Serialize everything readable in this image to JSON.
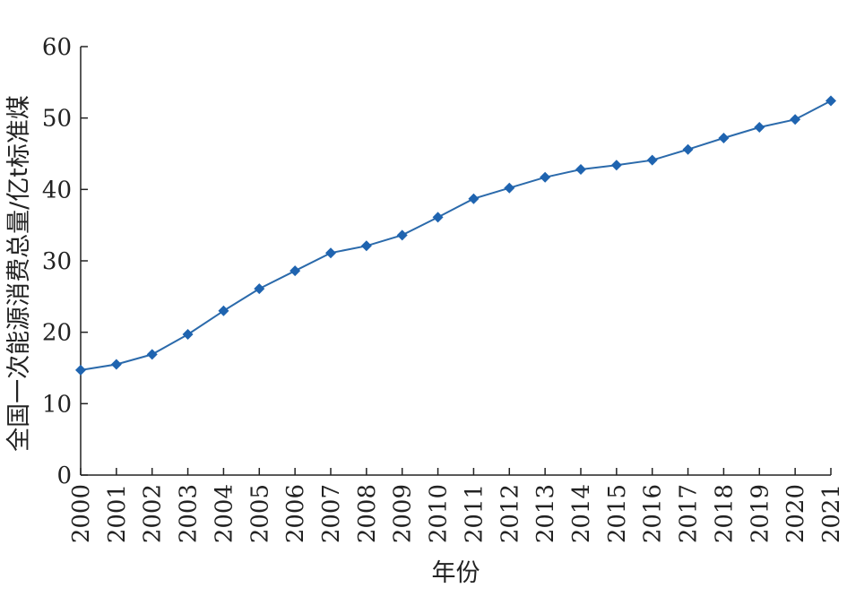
{
  "chart_data": {
    "type": "line",
    "title": "",
    "xlabel": "年份",
    "ylabel": "全国一次能源消费总量/亿t标准煤",
    "x": [
      "2000",
      "2001",
      "2002",
      "2003",
      "2004",
      "2005",
      "2006",
      "2007",
      "2008",
      "2009",
      "2010",
      "2011",
      "2012",
      "2013",
      "2014",
      "2015",
      "2016",
      "2017",
      "2018",
      "2019",
      "2020",
      "2021"
    ],
    "series": [
      {
        "values": [
          14.7,
          15.5,
          16.9,
          19.7,
          23.0,
          26.1,
          28.6,
          31.1,
          32.1,
          33.6,
          36.1,
          38.7,
          40.2,
          41.7,
          42.8,
          43.4,
          44.1,
          45.6,
          47.2,
          48.7,
          49.8,
          52.4
        ]
      }
    ],
    "ylim": [
      0,
      60
    ],
    "yticks": [
      "0",
      "10",
      "20",
      "30",
      "40",
      "50",
      "60"
    ],
    "grid": false,
    "legend": "none",
    "colors": {
      "series": "#2b6aab",
      "marker": "#1f64b0",
      "axis": "#222222"
    },
    "marker_shape": "diamond"
  }
}
